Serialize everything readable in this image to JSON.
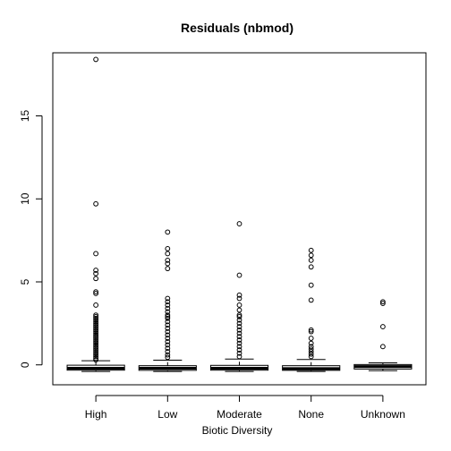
{
  "chart_data": {
    "type": "boxplot",
    "title": "Residuals (nbmod)",
    "xlabel": "Biotic Diversity",
    "ylabel": "",
    "ylim": [
      -1.2,
      18.8
    ],
    "yticks": [
      0,
      5,
      10,
      15
    ],
    "categories": [
      "High",
      "Low",
      "Moderate",
      "None",
      "Unknown"
    ],
    "boxes": [
      {
        "category": "High",
        "whisker_low": -0.4,
        "q1": -0.32,
        "median": -0.2,
        "q3": -0.02,
        "whisker_high": 0.25,
        "outliers": [
          18.4,
          9.7,
          6.7,
          5.7,
          5.5,
          5.2,
          4.4,
          4.3,
          3.6,
          3.0,
          2.9,
          2.8,
          2.7,
          2.6,
          2.5,
          2.4,
          2.3,
          2.2,
          2.1,
          2.0,
          1.9,
          1.8,
          1.7,
          1.6,
          1.5,
          1.4,
          1.3,
          1.2,
          1.1,
          1.0,
          0.9,
          0.8,
          0.7,
          0.6,
          0.5,
          0.4,
          0.3
        ]
      },
      {
        "category": "Low",
        "whisker_low": -0.4,
        "q1": -0.33,
        "median": -0.2,
        "q3": -0.05,
        "whisker_high": 0.28,
        "outliers": [
          8.0,
          7.0,
          6.7,
          6.3,
          6.1,
          5.8,
          4.0,
          3.8,
          3.6,
          3.4,
          3.2,
          3.0,
          2.9,
          2.8,
          2.6,
          2.4,
          2.2,
          2.0,
          1.8,
          1.6,
          1.4,
          1.2,
          1.0,
          0.8,
          0.6,
          0.45
        ]
      },
      {
        "category": "Moderate",
        "whisker_low": -0.4,
        "q1": -0.32,
        "median": -0.2,
        "q3": -0.03,
        "whisker_high": 0.35,
        "outliers": [
          8.5,
          5.4,
          4.2,
          4.0,
          3.6,
          3.3,
          3.0,
          2.9,
          2.7,
          2.5,
          2.3,
          2.1,
          1.9,
          1.7,
          1.5,
          1.3,
          1.1,
          0.9,
          0.7,
          0.5
        ]
      },
      {
        "category": "None",
        "whisker_low": -0.4,
        "q1": -0.33,
        "median": -0.22,
        "q3": -0.05,
        "whisker_high": 0.32,
        "outliers": [
          6.9,
          6.6,
          6.3,
          5.9,
          4.8,
          3.9,
          2.1,
          2.0,
          1.6,
          1.3,
          1.1,
          0.95,
          0.8,
          0.65,
          0.5
        ]
      },
      {
        "category": "Unknown",
        "whisker_low": -0.35,
        "q1": -0.25,
        "median": -0.1,
        "q3": 0.02,
        "whisker_high": 0.12,
        "outliers": [
          3.8,
          3.7,
          2.3,
          1.1
        ]
      }
    ]
  }
}
